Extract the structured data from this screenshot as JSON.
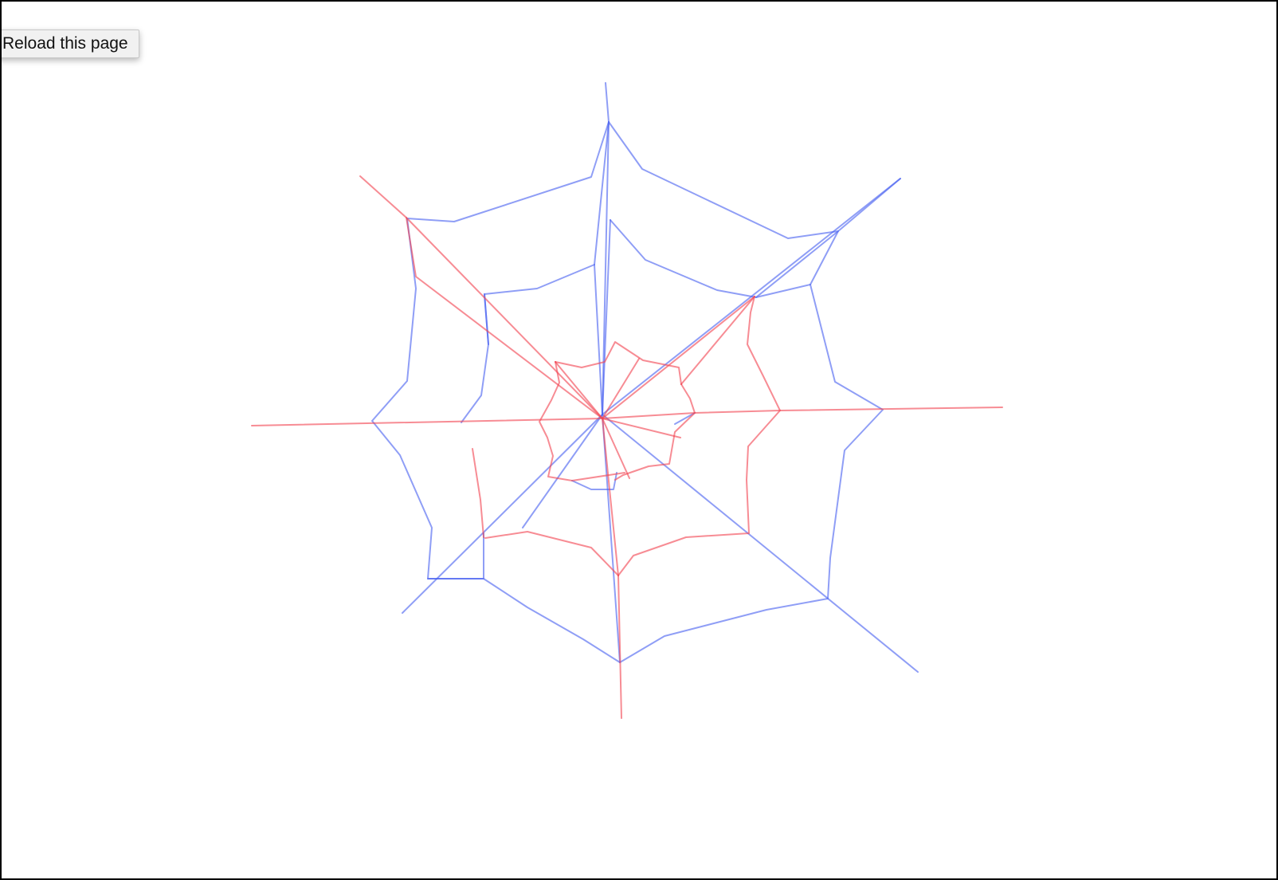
{
  "tooltip": {
    "text": "Reload this page"
  },
  "web": {
    "colors": {
      "outer": "#4a63f0",
      "inner": "#f24652"
    },
    "opacity": 0.62
  }
}
